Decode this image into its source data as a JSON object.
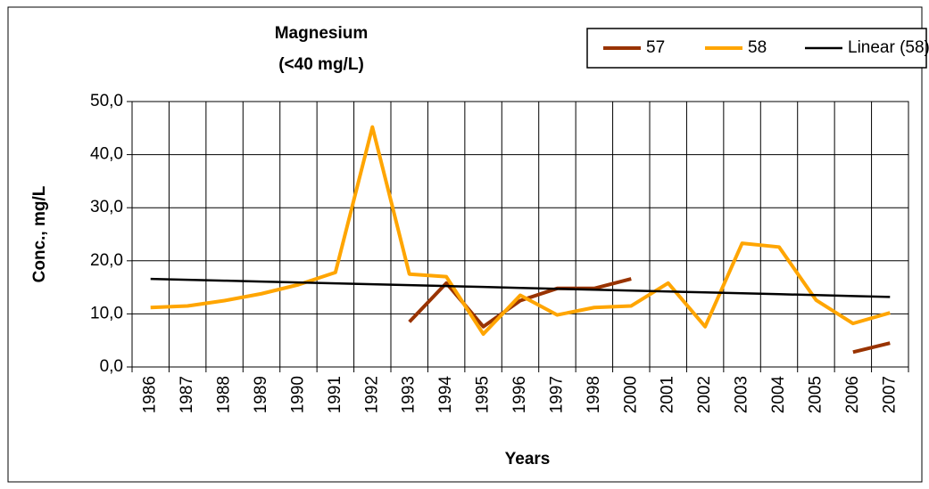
{
  "chart_data": {
    "type": "line",
    "title": "Magnesium",
    "subtitle": "(<40 mg/L)",
    "x_label": "Years",
    "y_label": "Conc., mg/L",
    "categories": [
      "1986",
      "1987",
      "1988",
      "1989",
      "1990",
      "1991",
      "1992",
      "1993",
      "1994",
      "1995",
      "1996",
      "1997",
      "1998",
      "2000",
      "2001",
      "2002",
      "2003",
      "2004",
      "2005",
      "2006",
      "2007"
    ],
    "series": [
      {
        "name": "57",
        "color": "#993300",
        "values": [
          null,
          null,
          null,
          null,
          null,
          null,
          null,
          8.5,
          15.8,
          7.6,
          12.5,
          14.8,
          14.8,
          16.6,
          null,
          null,
          null,
          null,
          null,
          2.8,
          4.5
        ]
      },
      {
        "name": "58",
        "color": "#FFA500",
        "values": [
          11.2,
          11.5,
          12.5,
          13.8,
          15.5,
          17.8,
          45.2,
          17.5,
          17.0,
          6.2,
          13.5,
          9.8,
          11.2,
          11.5,
          15.8,
          7.6,
          23.3,
          22.6,
          12.6,
          8.2,
          10.2
        ]
      },
      {
        "name": "Linear (58)",
        "color": "#000000",
        "values": [
          16.6,
          16.43,
          16.26,
          16.09,
          15.92,
          15.75,
          15.58,
          15.41,
          15.24,
          15.07,
          14.9,
          14.73,
          14.56,
          14.39,
          14.22,
          14.05,
          13.88,
          13.71,
          13.54,
          13.37,
          13.2
        ]
      }
    ],
    "ylim": [
      0,
      50
    ],
    "yticks": [
      {
        "value": 0,
        "label": "0,0"
      },
      {
        "value": 10,
        "label": "10,0"
      },
      {
        "value": 20,
        "label": "20,0"
      },
      {
        "value": 30,
        "label": "30,0"
      },
      {
        "value": 40,
        "label": "40,0"
      },
      {
        "value": 50,
        "label": "50,0"
      }
    ],
    "grid": true,
    "legend": "top-right"
  }
}
